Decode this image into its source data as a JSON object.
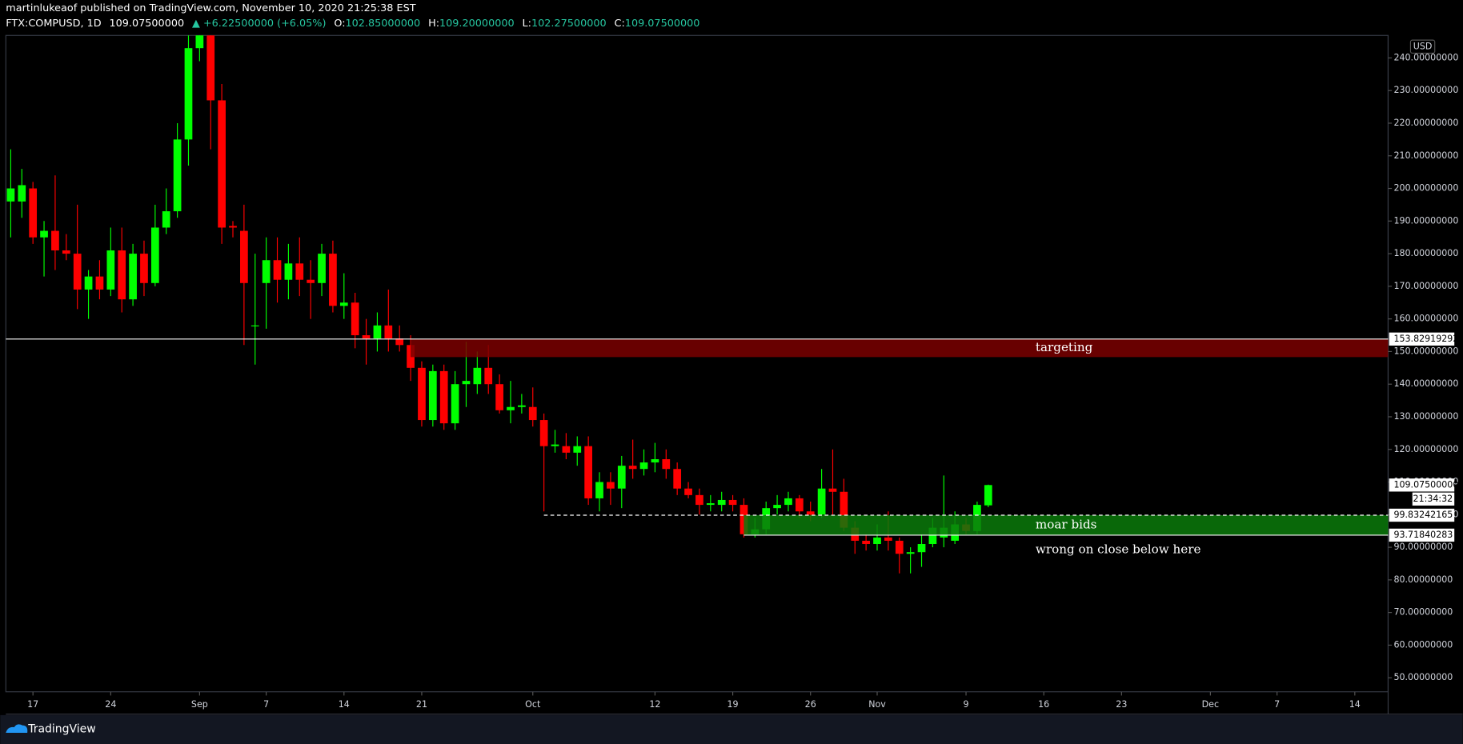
{
  "chart_data": {
    "type": "candlestick",
    "header": {
      "publisher_line": "martinlukeaof published on TradingView.com, November 10, 2020 21:25:38 EST",
      "symbol": "FTX:COMPUSD, 1D",
      "last": "109.07500000",
      "change": "▲ +6.22500000 (+6.05%)",
      "ohlc": [
        {
          "key": "O:",
          "value": "102.85000000"
        },
        {
          "key": "H:",
          "value": "109.20000000"
        },
        {
          "key": "L:",
          "value": "102.27500000"
        },
        {
          "key": "C:",
          "value": "109.07500000"
        }
      ]
    },
    "currency": "USD",
    "countdown": "21:34:32",
    "footer": "TradingView",
    "up_color": "#00ff00",
    "down_color": "#ff0000",
    "x": [
      -2,
      -1,
      0,
      1,
      2,
      3,
      4,
      5,
      6,
      7,
      8,
      9,
      10,
      11,
      12,
      13,
      14,
      15,
      16,
      17,
      18,
      19,
      20,
      21,
      22,
      23,
      24,
      25,
      26,
      27,
      28,
      29,
      30,
      31,
      32,
      33,
      34,
      35,
      36,
      37,
      38,
      39,
      40,
      41,
      42,
      43,
      44,
      45,
      46,
      47,
      48,
      49,
      50,
      51,
      52,
      53,
      54,
      55,
      56,
      57,
      58,
      59,
      60,
      61,
      62,
      63,
      64,
      65,
      66,
      67,
      68,
      69,
      70,
      71,
      72,
      73,
      74,
      75,
      76,
      77,
      78,
      79,
      80,
      81,
      82,
      83,
      84,
      85,
      86
    ],
    "open": [
      196,
      196,
      200,
      185,
      187,
      181,
      180,
      169,
      173,
      169,
      181,
      166,
      180,
      171,
      188,
      193,
      215,
      243,
      250,
      227,
      188.5,
      187,
      158,
      171,
      178,
      172,
      177,
      172,
      171,
      180,
      164,
      165,
      155,
      154,
      158,
      154,
      152,
      145,
      129,
      144,
      128,
      140,
      140,
      145,
      140,
      132,
      133,
      133,
      129,
      121,
      121,
      119,
      121,
      105,
      110,
      108,
      115,
      114,
      116,
      117,
      114,
      108,
      106,
      103,
      103,
      104.5,
      103,
      94,
      95.5,
      102,
      103,
      105,
      101,
      100,
      108,
      107,
      96,
      92,
      91,
      93,
      92,
      88,
      88.5,
      91,
      93,
      92,
      97,
      95,
      102.85
    ],
    "high": [
      212,
      206,
      202,
      190,
      204,
      186,
      195,
      175,
      178,
      188,
      188,
      183,
      184,
      195,
      200,
      220,
      247,
      256,
      258,
      232,
      190,
      195,
      180,
      185,
      185,
      183,
      185,
      178,
      183,
      184,
      174,
      168,
      160,
      162,
      169,
      158,
      155,
      147,
      146,
      146,
      144,
      153,
      150,
      152,
      143,
      141,
      137,
      139,
      131,
      126,
      125,
      124,
      124,
      113,
      113,
      118,
      123,
      120,
      122,
      120,
      116,
      110,
      108,
      106,
      107,
      106,
      105,
      99,
      104,
      106,
      107,
      106,
      104,
      114,
      120,
      111,
      98,
      94,
      97,
      101,
      93,
      90,
      94,
      99,
      112,
      101,
      99,
      104,
      109.2
    ],
    "low": [
      185,
      191,
      183,
      173,
      175,
      178,
      163,
      160,
      166,
      167,
      162,
      164,
      167,
      170,
      186,
      191,
      207,
      239,
      212,
      183,
      185,
      152,
      146,
      157,
      165,
      166,
      167,
      160,
      167,
      162,
      160,
      151,
      146,
      150,
      150,
      150,
      141,
      127,
      127,
      126,
      126,
      133,
      137,
      137,
      131,
      128,
      131,
      127,
      101,
      119,
      117,
      115,
      103,
      101,
      103,
      102,
      111,
      112,
      113,
      111,
      106,
      105,
      100,
      101,
      101,
      101,
      93,
      93,
      94,
      100,
      101,
      99,
      98,
      99,
      100,
      95,
      88,
      89,
      89,
      89,
      82,
      82,
      84,
      90,
      90,
      91,
      94,
      94,
      102.275
    ],
    "close": [
      200,
      201,
      185,
      187,
      181,
      180,
      169,
      173,
      169,
      181,
      166,
      180,
      171,
      188,
      193,
      215,
      243,
      250,
      227,
      188,
      188,
      171,
      158,
      178,
      172,
      177,
      172,
      171,
      180,
      164,
      165,
      155,
      154,
      158,
      154,
      152,
      145,
      129,
      144,
      128,
      140,
      141,
      145,
      140,
      132,
      133,
      133.5,
      129,
      121,
      121.5,
      119,
      121,
      105,
      110,
      108,
      115,
      114,
      116,
      117,
      114,
      108,
      106,
      103,
      103.5,
      104.5,
      103,
      94,
      95.5,
      102,
      103,
      105,
      101,
      100,
      108,
      107,
      96,
      92,
      91,
      93,
      92,
      88,
      88.5,
      91,
      96,
      96,
      97,
      95,
      103,
      109.075
    ],
    "xlim": [
      -2.44,
      122.0
    ],
    "ylim": [
      45.7,
      246.9
    ],
    "xticks": [
      {
        "value": 0,
        "label": "17"
      },
      {
        "value": 7,
        "label": "24"
      },
      {
        "value": 15,
        "label": "Sep"
      },
      {
        "value": 21,
        "label": "7"
      },
      {
        "value": 28,
        "label": "14"
      },
      {
        "value": 35,
        "label": "21"
      },
      {
        "value": 45,
        "label": "Oct"
      },
      {
        "value": 56,
        "label": "12"
      },
      {
        "value": 63,
        "label": "19"
      },
      {
        "value": 70,
        "label": "26"
      },
      {
        "value": 76,
        "label": "Nov"
      },
      {
        "value": 84,
        "label": "9"
      },
      {
        "value": 91,
        "label": "16"
      },
      {
        "value": 98,
        "label": "23"
      },
      {
        "value": 106,
        "label": "Dec"
      },
      {
        "value": 112,
        "label": "7"
      },
      {
        "value": 119,
        "label": "14"
      }
    ],
    "yticks": [
      {
        "value": 50,
        "label": "50.00000000"
      },
      {
        "value": 60,
        "label": "60.00000000"
      },
      {
        "value": 70,
        "label": "70.00000000"
      },
      {
        "value": 80,
        "label": "80.00000000"
      },
      {
        "value": 90,
        "label": "90.00000000"
      },
      {
        "value": 100,
        "label": "100.00000000"
      },
      {
        "value": 110,
        "label": "110.00000000"
      },
      {
        "value": 120,
        "label": "120.00000000"
      },
      {
        "value": 130,
        "label": "130.00000000"
      },
      {
        "value": 140,
        "label": "140.00000000"
      },
      {
        "value": 150,
        "label": "150.00000000"
      },
      {
        "value": 160,
        "label": "160.00000000"
      },
      {
        "value": 170,
        "label": "170.00000000"
      },
      {
        "value": 180,
        "label": "180.00000000"
      },
      {
        "value": 190,
        "label": "190.00000000"
      },
      {
        "value": 200,
        "label": "200.00000000"
      },
      {
        "value": 210,
        "label": "210.00000000"
      },
      {
        "value": 220,
        "label": "220.00000000"
      },
      {
        "value": 230,
        "label": "230.00000000"
      },
      {
        "value": 240,
        "label": "240.00000000"
      }
    ],
    "grid": false,
    "annotations": {
      "target_line": 153.82919292,
      "target_zone": {
        "label": "targeting",
        "x_start": 34,
        "ylim": [
          148.3,
          153.82919292
        ],
        "color": "#7a0000"
      },
      "bid_zone": {
        "label": "moar bids",
        "x_start": 64,
        "dashed_x_start": 46,
        "ylim": [
          93.71840283,
          99.83242165
        ],
        "color": "#0b7a0b"
      },
      "stop_note": "wrong on close below here"
    }
  }
}
